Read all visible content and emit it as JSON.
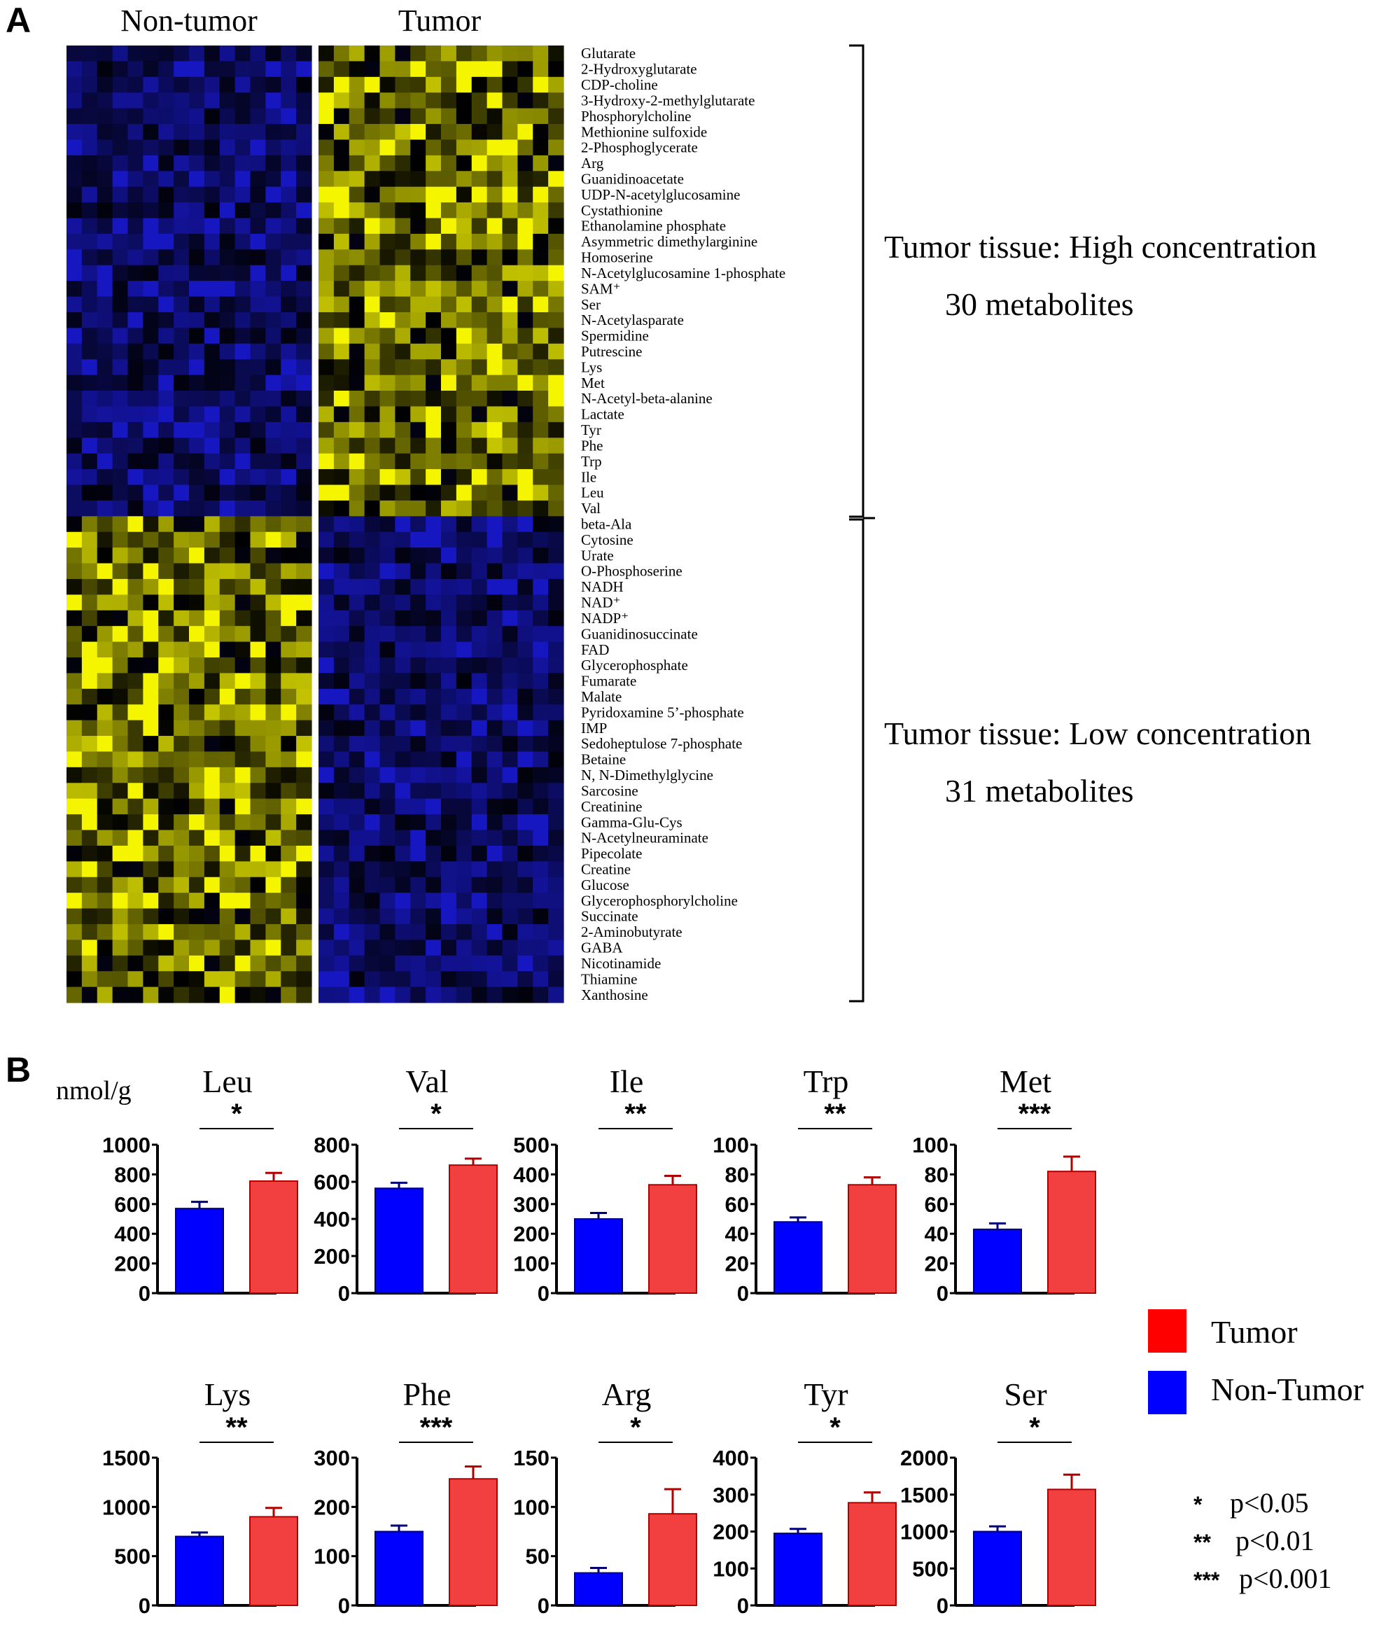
{
  "panel_a": {
    "label": "A",
    "group_labels": [
      "Non-tumor",
      "Tumor"
    ],
    "metabolites": [
      "Glutarate",
      "2-Hydroxyglutarate",
      "CDP-choline",
      "3-Hydroxy-2-methylglutarate",
      "Phosphorylcholine",
      "Methionine sulfoxide",
      "2-Phosphoglycerate",
      "Arg",
      "Guanidinoacetate",
      "UDP-N-acetylglucosamine",
      "Cystathionine",
      "Ethanolamine phosphate",
      "Asymmetric dimethylarginine",
      "Homoserine",
      "N-Acetylglucosamine 1-phosphate",
      "SAM⁺",
      "Ser",
      "N-Acetylasparate",
      "Spermidine",
      "Putrescine",
      "Lys",
      "Met",
      "N-Acetyl-beta-alanine",
      "Lactate",
      "Tyr",
      "Phe",
      "Trp",
      "Ile",
      "Leu",
      "Val",
      "beta-Ala",
      "Cytosine",
      "Urate",
      "O-Phosphoserine",
      "NADH",
      "NAD⁺",
      "NADP⁺",
      "Guanidinosuccinate",
      "FAD",
      "Glycerophosphate",
      "Fumarate",
      "Malate",
      "Pyridoxamine 5’-phosphate",
      "IMP",
      "Sedoheptulose 7-phosphate",
      "Betaine",
      "N, N-Dimethylglycine",
      "Sarcosine",
      "Creatinine",
      "Gamma-Glu-Cys",
      "N-Acetylneuraminate",
      "Pipecolate",
      "Creatine",
      "Glucose",
      "Glycerophosphorylcholine",
      "Succinate",
      "2-Aminobutyrate",
      "GABA",
      "Nicotinamide",
      "Thiamine",
      "Xanthosine"
    ],
    "high_group": {
      "line1": "Tumor tissue: High concentration",
      "line2": "30 metabolites"
    },
    "low_group": {
      "line1": "Tumor tissue: Low concentration",
      "line2": "31 metabolites"
    },
    "colors": {
      "high": "#f5f500",
      "low": "#1a1ad6",
      "mid": "#000000"
    }
  },
  "panel_b": {
    "label": "B",
    "unit": "nmol/g",
    "legend": [
      {
        "name": "Tumor",
        "color": "#ff0000"
      },
      {
        "name": "Non-Tumor",
        "color": "#0000ff"
      }
    ],
    "significance_key": [
      {
        "stars": "*",
        "text": "p<0.05"
      },
      {
        "stars": "**",
        "text": "p<0.01"
      },
      {
        "stars": "***",
        "text": "p<0.001"
      }
    ]
  },
  "chart_data": [
    {
      "type": "heatmap",
      "title": "",
      "rows": 61,
      "columns_per_group": 16,
      "groups": [
        "Non-tumor",
        "Tumor"
      ],
      "scale": [
        "low",
        "high"
      ],
      "colors": [
        "#1a1ad6",
        "#000000",
        "#f5f500"
      ]
    },
    {
      "type": "bar",
      "title": "Leu",
      "categories": [
        "Non-Tumor",
        "Tumor"
      ],
      "values": [
        570,
        755
      ],
      "errors": [
        45,
        55
      ],
      "ylim": [
        0,
        1000
      ],
      "yticks": [
        0,
        200,
        400,
        600,
        800,
        1000
      ],
      "significance": "*",
      "colors": [
        "#0000ff",
        "#f24040"
      ]
    },
    {
      "type": "bar",
      "title": "Val",
      "categories": [
        "Non-Tumor",
        "Tumor"
      ],
      "values": [
        565,
        690
      ],
      "errors": [
        30,
        35
      ],
      "ylim": [
        0,
        800
      ],
      "yticks": [
        0,
        200,
        400,
        600,
        800
      ],
      "significance": "*",
      "colors": [
        "#0000ff",
        "#f24040"
      ]
    },
    {
      "type": "bar",
      "title": "Ile",
      "categories": [
        "Non-Tumor",
        "Tumor"
      ],
      "values": [
        250,
        365
      ],
      "errors": [
        20,
        30
      ],
      "ylim": [
        0,
        500
      ],
      "yticks": [
        0,
        100,
        200,
        300,
        400,
        500
      ],
      "significance": "**",
      "colors": [
        "#0000ff",
        "#f24040"
      ]
    },
    {
      "type": "bar",
      "title": "Trp",
      "categories": [
        "Non-Tumor",
        "Tumor"
      ],
      "values": [
        48,
        73
      ],
      "errors": [
        3,
        5
      ],
      "ylim": [
        0,
        100
      ],
      "yticks": [
        0,
        20,
        40,
        60,
        80,
        100
      ],
      "significance": "**",
      "colors": [
        "#0000ff",
        "#f24040"
      ]
    },
    {
      "type": "bar",
      "title": "Met",
      "categories": [
        "Non-Tumor",
        "Tumor"
      ],
      "values": [
        43,
        82
      ],
      "errors": [
        4,
        10
      ],
      "ylim": [
        0,
        100
      ],
      "yticks": [
        0,
        20,
        40,
        60,
        80,
        100
      ],
      "significance": "***",
      "colors": [
        "#0000ff",
        "#f24040"
      ]
    },
    {
      "type": "bar",
      "title": "Lys",
      "categories": [
        "Non-Tumor",
        "Tumor"
      ],
      "values": [
        700,
        900
      ],
      "errors": [
        40,
        90
      ],
      "ylim": [
        0,
        1500
      ],
      "yticks": [
        0,
        500,
        1000,
        1500
      ],
      "significance": "**",
      "colors": [
        "#0000ff",
        "#f24040"
      ]
    },
    {
      "type": "bar",
      "title": "Phe",
      "categories": [
        "Non-Tumor",
        "Tumor"
      ],
      "values": [
        150,
        257
      ],
      "errors": [
        12,
        25
      ],
      "ylim": [
        0,
        300
      ],
      "yticks": [
        0,
        100,
        200,
        300
      ],
      "significance": "***",
      "colors": [
        "#0000ff",
        "#f24040"
      ]
    },
    {
      "type": "bar",
      "title": "Arg",
      "categories": [
        "Non-Tumor",
        "Tumor"
      ],
      "values": [
        33,
        93
      ],
      "errors": [
        5,
        25
      ],
      "ylim": [
        0,
        150
      ],
      "yticks": [
        0,
        50,
        100,
        150
      ],
      "significance": "*",
      "colors": [
        "#0000ff",
        "#f24040"
      ]
    },
    {
      "type": "bar",
      "title": "Tyr",
      "categories": [
        "Non-Tumor",
        "Tumor"
      ],
      "values": [
        195,
        278
      ],
      "errors": [
        12,
        28
      ],
      "ylim": [
        0,
        400
      ],
      "yticks": [
        0,
        100,
        200,
        300,
        400
      ],
      "significance": "*",
      "colors": [
        "#0000ff",
        "#f24040"
      ]
    },
    {
      "type": "bar",
      "title": "Ser",
      "categories": [
        "Non-Tumor",
        "Tumor"
      ],
      "values": [
        1000,
        1570
      ],
      "errors": [
        70,
        200
      ],
      "ylim": [
        0,
        2000
      ],
      "yticks": [
        0,
        500,
        1000,
        1500,
        2000
      ],
      "significance": "*",
      "colors": [
        "#0000ff",
        "#f24040"
      ]
    }
  ]
}
